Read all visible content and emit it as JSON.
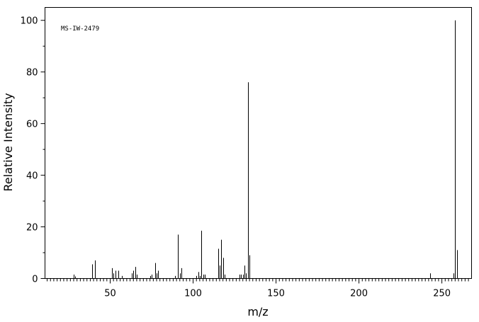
{
  "chart_data": {
    "type": "bar",
    "annotation": "MS-IW-2479",
    "xlabel": "m/z",
    "ylabel": "Relative Intensity",
    "x": [
      28,
      29,
      39,
      41,
      51,
      52,
      53,
      55,
      57,
      63,
      64,
      65,
      66,
      74,
      75,
      77,
      78,
      79,
      89,
      91,
      92,
      93,
      102,
      103,
      104,
      105,
      106,
      107,
      115,
      116,
      117,
      118,
      119,
      128,
      129,
      130,
      131,
      132,
      133,
      134,
      243,
      257,
      258,
      259
    ],
    "values": [
      1.5,
      0.8,
      5.5,
      7,
      4,
      2,
      3,
      3,
      1,
      2,
      3,
      4.5,
      1.5,
      1,
      1.5,
      6,
      2,
      3,
      1,
      17,
      2,
      4,
      1,
      2.5,
      1,
      18.5,
      1.5,
      1.5,
      11.5,
      5,
      15,
      8,
      1.5,
      1.5,
      1.5,
      1.5,
      5,
      2,
      76,
      9,
      2,
      2,
      100,
      11
    ],
    "color": "#000000",
    "xlim": [
      10.7,
      267.9
    ],
    "ylim": [
      0,
      105
    ],
    "xticks": [
      50,
      100,
      150,
      200,
      250
    ],
    "yticks": [
      0,
      20,
      40,
      60,
      80,
      100
    ],
    "yminorticks": [
      10,
      30,
      50,
      70,
      90
    ],
    "xminorticks": [
      12,
      14,
      16,
      18,
      20,
      22,
      24,
      26,
      28,
      30,
      32,
      34,
      36,
      38,
      40,
      42,
      44,
      46,
      48,
      52,
      54,
      56,
      58,
      60,
      62,
      64,
      66,
      68,
      70,
      72,
      74,
      76,
      78,
      80,
      82,
      84,
      86,
      88,
      90,
      92,
      94,
      96,
      98,
      102,
      104,
      106,
      108,
      110,
      112,
      114,
      116,
      118,
      120,
      122,
      124,
      126,
      128,
      130,
      132,
      134,
      136,
      138,
      140,
      142,
      144,
      146,
      148,
      152,
      154,
      156,
      158,
      160,
      162,
      164,
      166,
      168,
      170,
      172,
      174,
      176,
      178,
      180,
      182,
      184,
      186,
      188,
      190,
      192,
      194,
      196,
      198,
      202,
      204,
      206,
      208,
      210,
      212,
      214,
      216,
      218,
      220,
      222,
      224,
      226,
      228,
      230,
      232,
      234,
      236,
      238,
      240,
      242,
      244,
      246,
      248,
      252,
      254,
      256,
      258,
      260,
      262,
      264,
      266
    ],
    "grid": false
  }
}
